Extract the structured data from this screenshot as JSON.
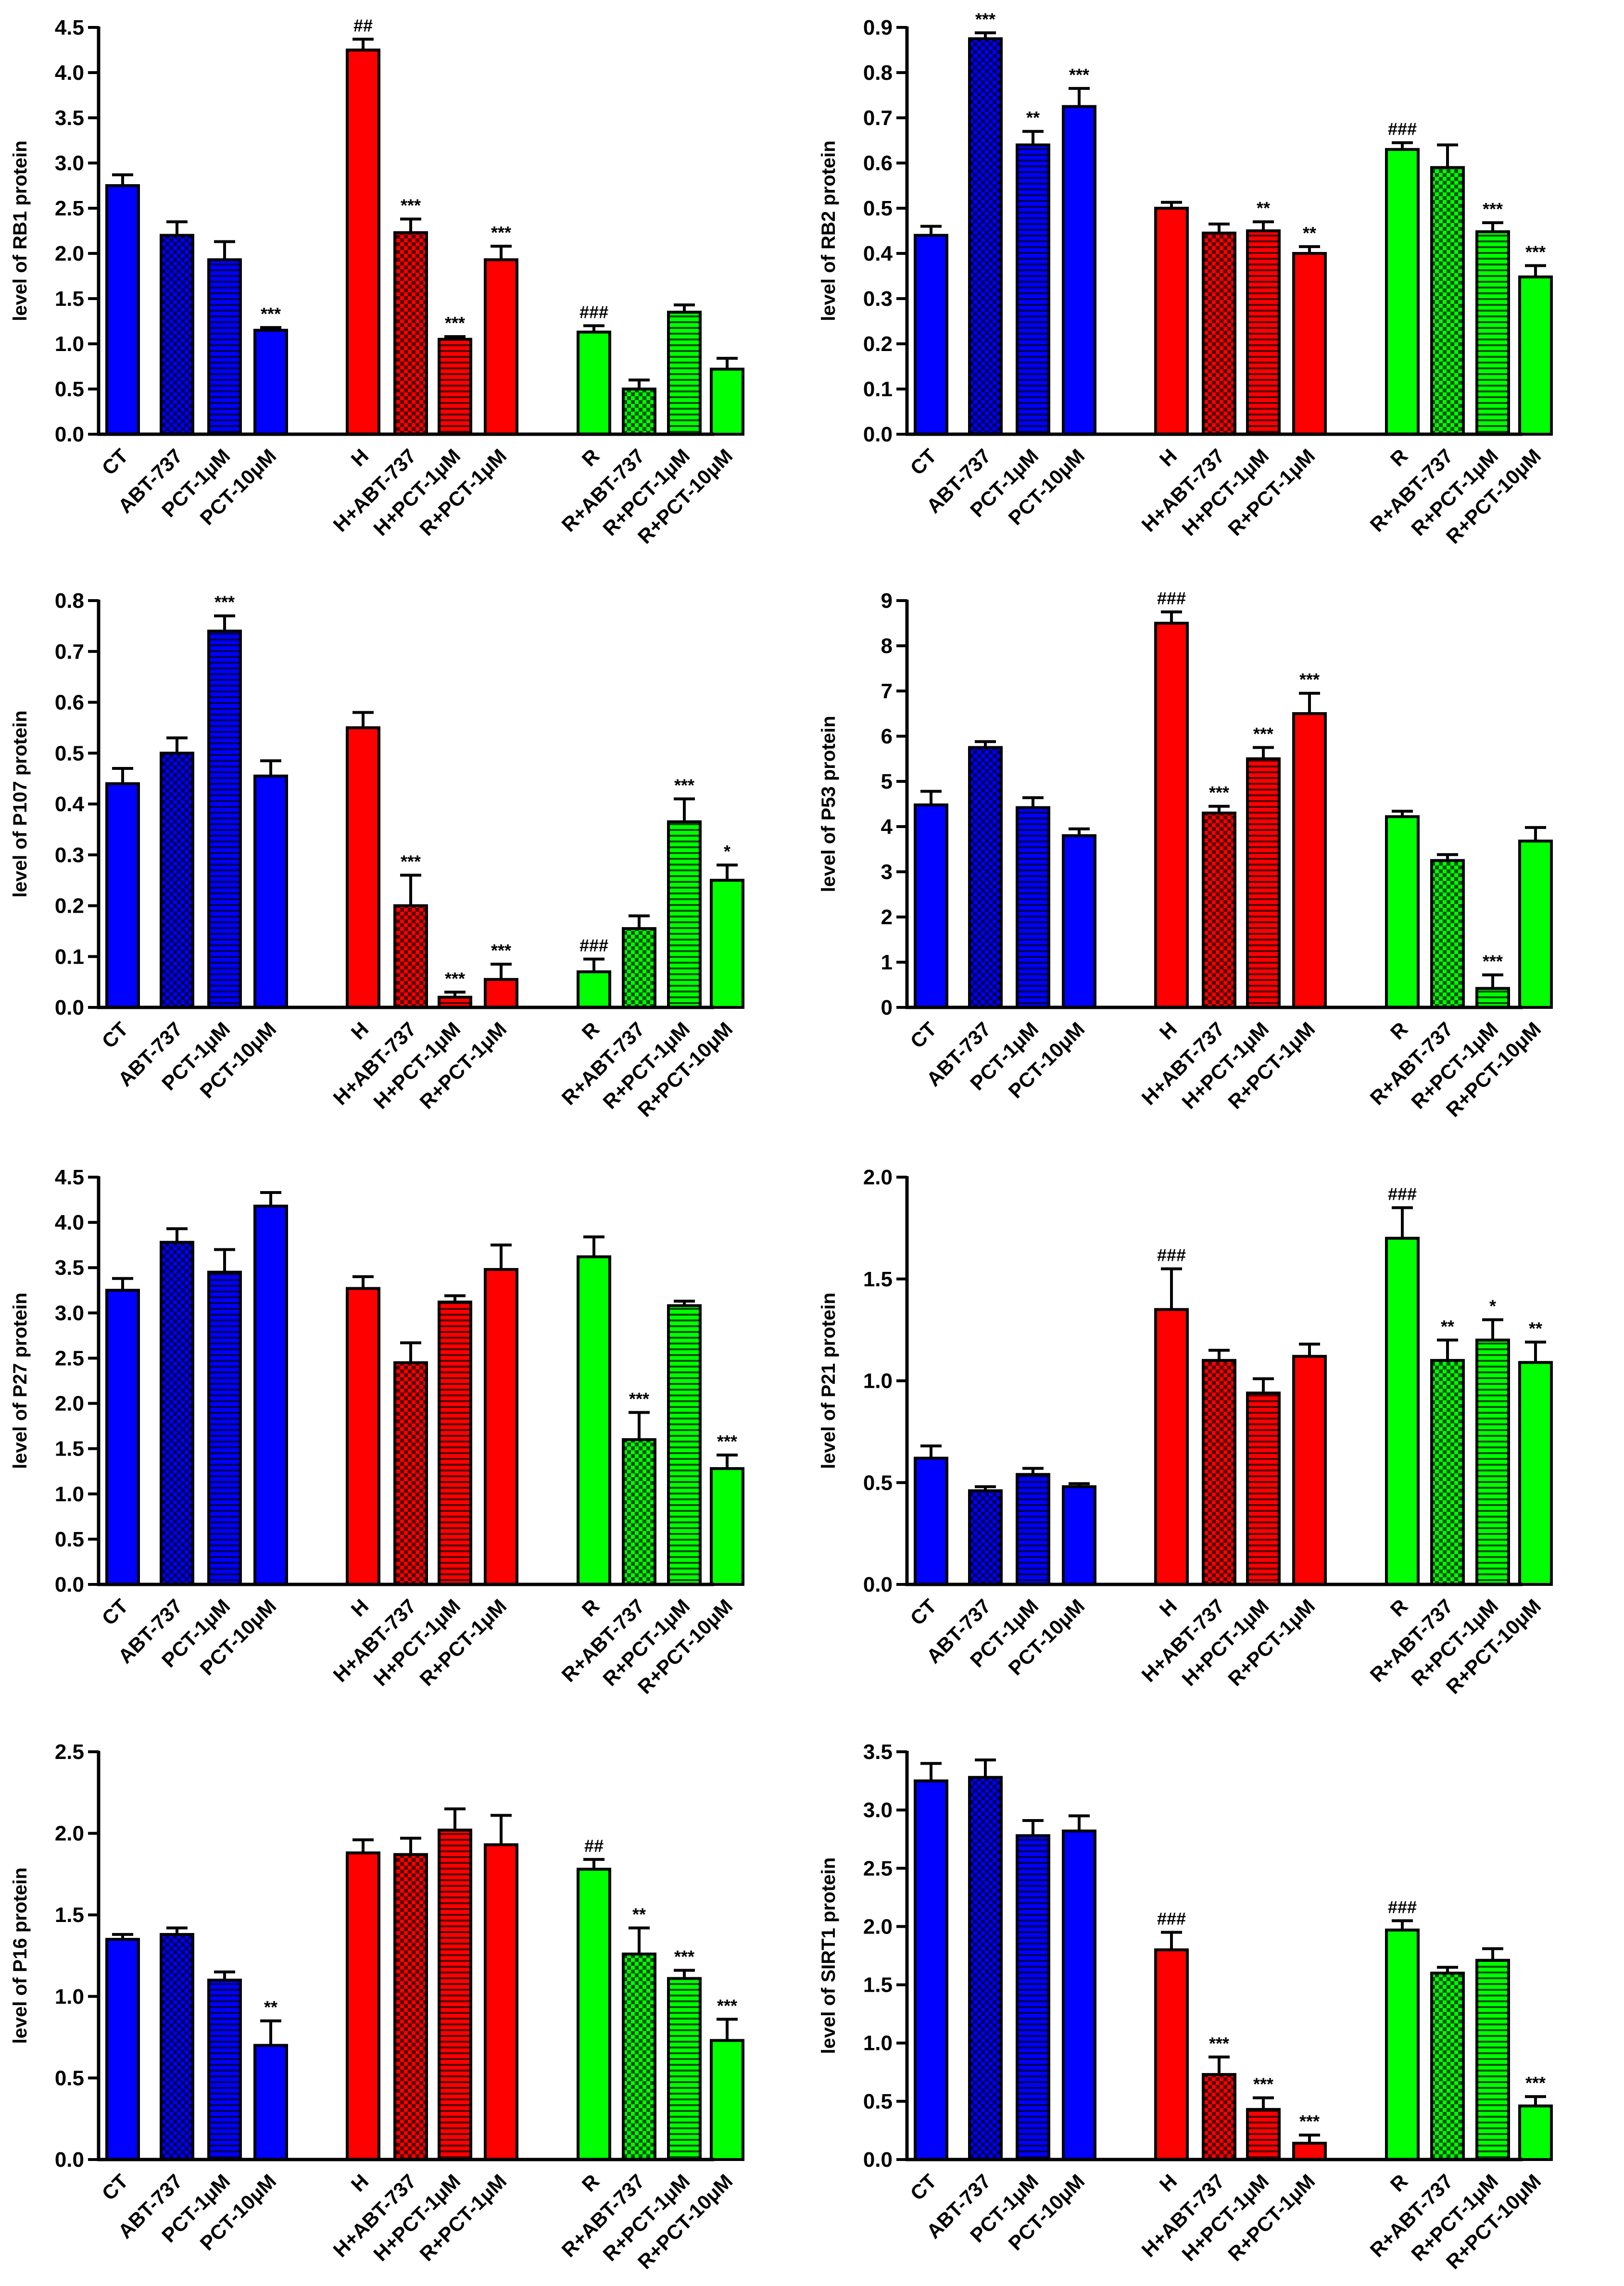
{
  "colors": {
    "blue": "#0000ff",
    "red": "#ff0000",
    "green": "#00ff00",
    "axis": "#000000"
  },
  "chart_data": [
    {
      "type": "bar",
      "ylabel": "level of RB1 protein",
      "ylim": [
        0,
        4.5
      ],
      "yticks": [
        "0.0",
        "0.5",
        "1.0",
        "1.5",
        "2.0",
        "2.5",
        "3.0",
        "3.5",
        "4.0",
        "4.5"
      ],
      "categories": [
        "CT",
        "ABT-737",
        "PCT-1μM",
        "PCT-10μM",
        "H",
        "H+ABT-737",
        "H+PCT-1μM",
        "R+PCT-1μM",
        "R",
        "R+ABT-737",
        "R+PCT-1μM",
        "R+PCT-10μM"
      ],
      "values": [
        2.75,
        2.2,
        1.93,
        1.15,
        4.25,
        2.23,
        1.05,
        1.93,
        1.13,
        0.5,
        1.35,
        0.72
      ],
      "errors": [
        0.12,
        0.15,
        0.2,
        0.03,
        0.12,
        0.15,
        0.03,
        0.15,
        0.07,
        0.1,
        0.08,
        0.12
      ],
      "significance": [
        "",
        "",
        "",
        "***",
        "##",
        "***",
        "***",
        "***",
        "###",
        "",
        "",
        ""
      ]
    },
    {
      "type": "bar",
      "ylabel": "level of RB2 protein",
      "ylim": [
        0,
        0.9
      ],
      "yticks": [
        "0.0",
        "0.1",
        "0.2",
        "0.3",
        "0.4",
        "0.5",
        "0.6",
        "0.7",
        "0.8",
        "0.9"
      ],
      "categories": [
        "CT",
        "ABT-737",
        "PCT-1μM",
        "PCT-10μM",
        "H",
        "H+ABT-737",
        "H+PCT-1μM",
        "R+PCT-1μM",
        "R",
        "R+ABT-737",
        "R+PCT-1μM",
        "R+PCT-10μM"
      ],
      "values": [
        0.44,
        0.875,
        0.64,
        0.725,
        0.5,
        0.445,
        0.45,
        0.4,
        0.63,
        0.59,
        0.448,
        0.348
      ],
      "errors": [
        0.02,
        0.013,
        0.03,
        0.04,
        0.013,
        0.02,
        0.02,
        0.015,
        0.015,
        0.05,
        0.02,
        0.025
      ],
      "significance": [
        "",
        "***",
        "**",
        "***",
        "",
        "",
        "**",
        "**",
        "###",
        "",
        "***",
        "***"
      ]
    },
    {
      "type": "bar",
      "ylabel": "level of P107 protein",
      "ylim": [
        0,
        0.8
      ],
      "yticks": [
        "0.0",
        "0.1",
        "0.2",
        "0.3",
        "0.4",
        "0.5",
        "0.6",
        "0.7",
        "0.8"
      ],
      "categories": [
        "CT",
        "ABT-737",
        "PCT-1μM",
        "PCT-10μM",
        "H",
        "H+ABT-737",
        "H+PCT-1μM",
        "R+PCT-1μM",
        "R",
        "R+ABT-737",
        "R+PCT-1μM",
        "R+PCT-10μM"
      ],
      "values": [
        0.44,
        0.5,
        0.74,
        0.455,
        0.55,
        0.2,
        0.02,
        0.055,
        0.07,
        0.155,
        0.365,
        0.25
      ],
      "errors": [
        0.03,
        0.03,
        0.03,
        0.03,
        0.03,
        0.06,
        0.01,
        0.03,
        0.025,
        0.025,
        0.045,
        0.03
      ],
      "significance": [
        "",
        "",
        "***",
        "",
        "",
        "***",
        "***",
        "***",
        "###",
        "",
        "***",
        "*"
      ]
    },
    {
      "type": "bar",
      "ylabel": "level of P53 protein",
      "ylim": [
        0,
        9
      ],
      "yticks": [
        "0",
        "1",
        "2",
        "3",
        "4",
        "5",
        "6",
        "7",
        "8",
        "9"
      ],
      "categories": [
        "CT",
        "ABT-737",
        "PCT-1μM",
        "PCT-10μM",
        "H",
        "H+ABT-737",
        "H+PCT-1μM",
        "R+PCT-1μM",
        "R",
        "R+ABT-737",
        "R+PCT-1μM",
        "R+PCT-10μM"
      ],
      "values": [
        4.48,
        5.75,
        4.42,
        3.8,
        8.5,
        4.3,
        5.5,
        6.5,
        4.22,
        3.25,
        0.42,
        3.68
      ],
      "errors": [
        0.3,
        0.13,
        0.22,
        0.15,
        0.25,
        0.15,
        0.25,
        0.45,
        0.12,
        0.13,
        0.3,
        0.3
      ],
      "significance": [
        "",
        "",
        "",
        "",
        "###",
        "***",
        "***",
        "***",
        "",
        "",
        "***",
        ""
      ]
    },
    {
      "type": "bar",
      "ylabel": "level of P27 protein",
      "ylim": [
        0,
        4.5
      ],
      "yticks": [
        "0.0",
        "0.5",
        "1.0",
        "1.5",
        "2.0",
        "2.5",
        "3.0",
        "3.5",
        "4.0",
        "4.5"
      ],
      "categories": [
        "CT",
        "ABT-737",
        "PCT-1μM",
        "PCT-10μM",
        "H",
        "H+ABT-737",
        "H+PCT-1μM",
        "R+PCT-1μM",
        "R",
        "R+ABT-737",
        "R+PCT-1μM",
        "R+PCT-10μM"
      ],
      "values": [
        3.25,
        3.78,
        3.45,
        4.18,
        3.27,
        2.45,
        3.12,
        3.48,
        3.62,
        1.6,
        3.08,
        1.28
      ],
      "errors": [
        0.13,
        0.15,
        0.25,
        0.15,
        0.13,
        0.22,
        0.07,
        0.27,
        0.22,
        0.3,
        0.05,
        0.15
      ],
      "significance": [
        "",
        "",
        "",
        "",
        "",
        "",
        "",
        "",
        "",
        "***",
        "",
        "***"
      ]
    },
    {
      "type": "bar",
      "ylabel": "level of P21 protein",
      "ylim": [
        0,
        2.0
      ],
      "yticks": [
        "0.0",
        "0.5",
        "1.0",
        "1.5",
        "2.0"
      ],
      "categories": [
        "CT",
        "ABT-737",
        "PCT-1μM",
        "PCT-10μM",
        "H",
        "H+ABT-737",
        "H+PCT-1μM",
        "R+PCT-1μM",
        "R",
        "R+ABT-737",
        "R+PCT-1μM",
        "R+PCT-10μM"
      ],
      "values": [
        0.62,
        0.46,
        0.54,
        0.48,
        1.35,
        1.1,
        0.94,
        1.12,
        1.7,
        1.1,
        1.2,
        1.09
      ],
      "errors": [
        0.06,
        0.02,
        0.03,
        0.015,
        0.2,
        0.05,
        0.07,
        0.06,
        0.15,
        0.1,
        0.1,
        0.1
      ],
      "significance": [
        "",
        "",
        "",
        "",
        "###",
        "",
        "",
        "",
        "###",
        "**",
        "*",
        "**"
      ]
    },
    {
      "type": "bar",
      "ylabel": "level of P16 protein",
      "ylim": [
        0,
        2.5
      ],
      "yticks": [
        "0.0",
        "0.5",
        "1.0",
        "1.5",
        "2.0",
        "2.5"
      ],
      "categories": [
        "CT",
        "ABT-737",
        "PCT-1μM",
        "PCT-10μM",
        "H",
        "H+ABT-737",
        "H+PCT-1μM",
        "R+PCT-1μM",
        "R",
        "R+ABT-737",
        "R+PCT-1μM",
        "R+PCT-10μM"
      ],
      "values": [
        1.35,
        1.38,
        1.1,
        0.7,
        1.88,
        1.87,
        2.02,
        1.93,
        1.78,
        1.26,
        1.11,
        0.73
      ],
      "errors": [
        0.03,
        0.04,
        0.05,
        0.15,
        0.08,
        0.1,
        0.13,
        0.18,
        0.06,
        0.16,
        0.05,
        0.13
      ],
      "significance": [
        "",
        "",
        "",
        "**",
        "",
        "",
        "",
        "",
        "##",
        "**",
        "***",
        "***"
      ]
    },
    {
      "type": "bar",
      "ylabel": "level of SIRT1 protein",
      "ylim": [
        0,
        3.5
      ],
      "yticks": [
        "0.0",
        "0.5",
        "1.0",
        "1.5",
        "2.0",
        "2.5",
        "3.0",
        "3.5"
      ],
      "categories": [
        "CT",
        "ABT-737",
        "PCT-1μM",
        "PCT-10μM",
        "H",
        "H+ABT-737",
        "H+PCT-1μM",
        "R+PCT-1μM",
        "R",
        "R+ABT-737",
        "R+PCT-1μM",
        "R+PCT-10μM"
      ],
      "values": [
        3.25,
        3.28,
        2.78,
        2.82,
        1.8,
        0.73,
        0.43,
        0.14,
        1.97,
        1.6,
        1.71,
        0.46
      ],
      "errors": [
        0.15,
        0.15,
        0.13,
        0.13,
        0.15,
        0.15,
        0.1,
        0.07,
        0.08,
        0.05,
        0.1,
        0.08
      ],
      "significance": [
        "",
        "",
        "",
        "",
        "###",
        "***",
        "***",
        "***",
        "###",
        "",
        "",
        "***"
      ]
    }
  ]
}
